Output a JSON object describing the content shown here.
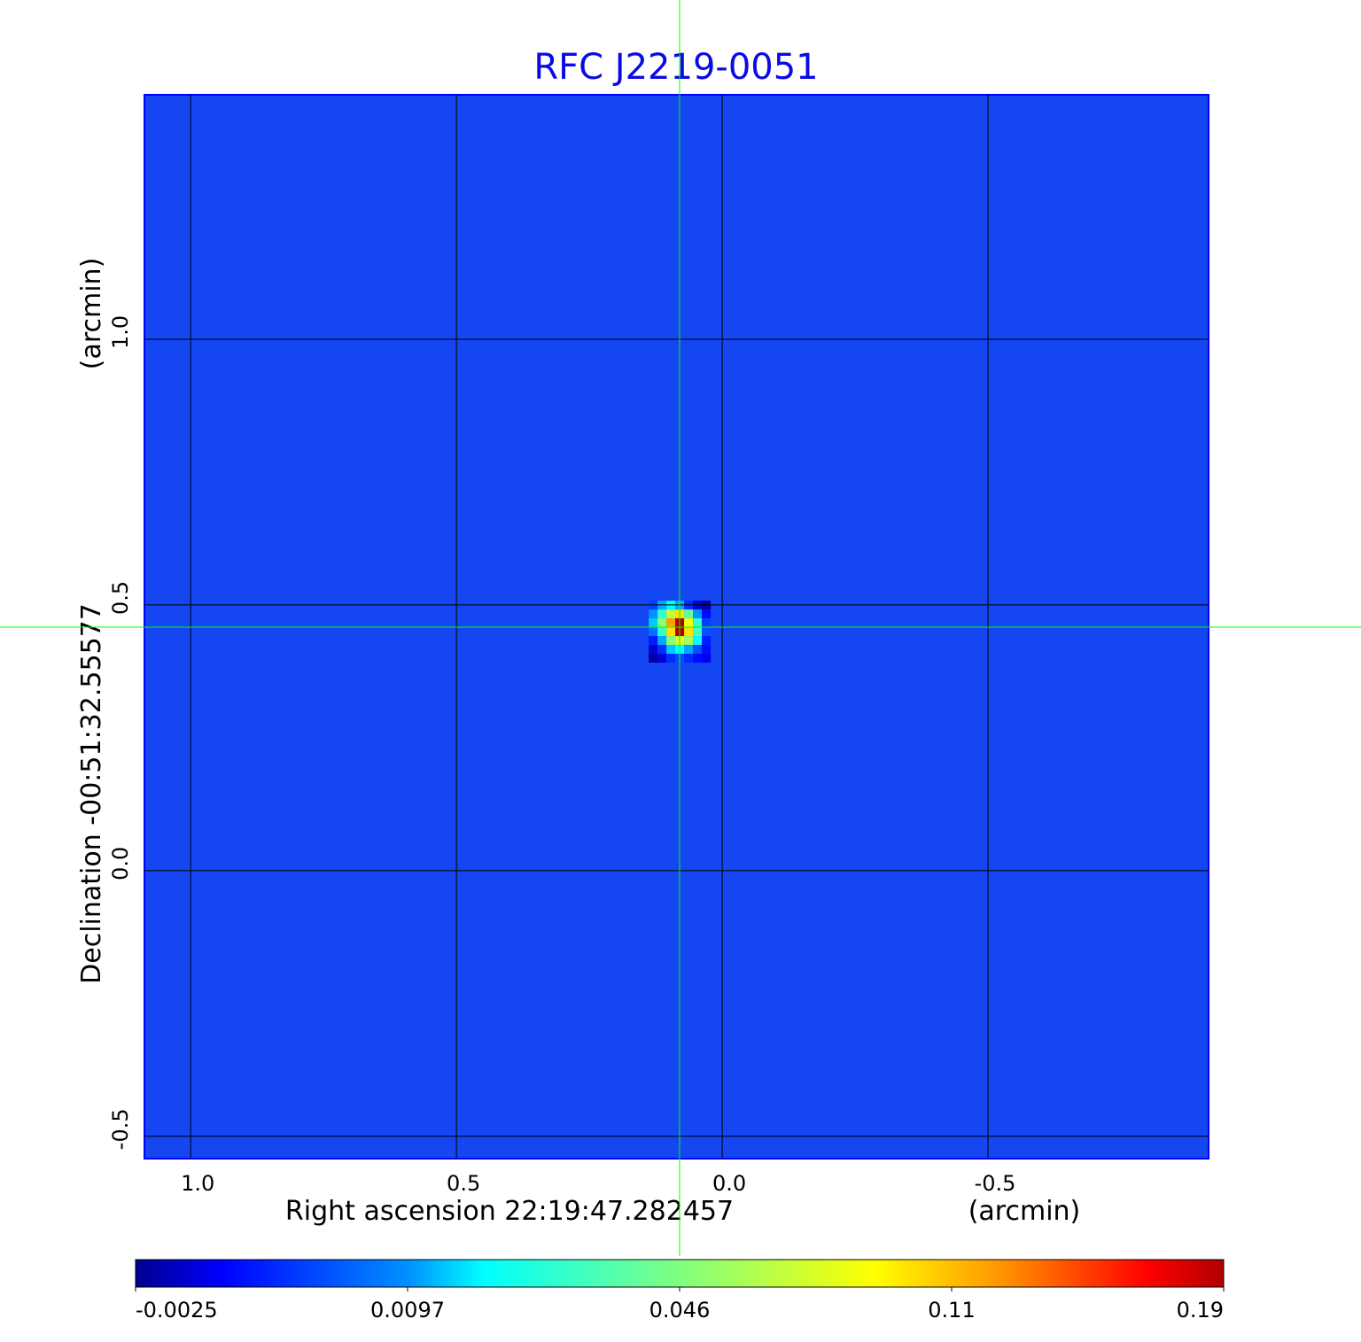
{
  "chart_data": {
    "type": "heatmap",
    "title": "RFC J2219-0051",
    "xlabel": "Right ascension  22:19:47.282457",
    "xunit": "(arcmin)",
    "ylabel": "Declination  -00:51:32.55577",
    "yunit": "(arcmin)",
    "xlim": [
      1.087,
      -0.915
    ],
    "ylim": [
      -0.542,
      1.46
    ],
    "xticks": [
      1.0,
      0.5,
      0.0,
      -0.5
    ],
    "xtick_labels": [
      "1.0",
      "0.5",
      "0.0",
      "-0.5"
    ],
    "yticks": [
      1.0,
      0.5,
      0.0,
      -0.5
    ],
    "ytick_labels": [
      "1.0",
      "0.5",
      "0.0",
      "-0.5"
    ],
    "grid": true,
    "crosshair": {
      "x": 0.08,
      "y": 0.458,
      "color": "#00ff00"
    },
    "colormap": "jet",
    "background_value": 0.003,
    "colorbar": {
      "ticks": [
        -0.0025,
        0.0097,
        0.046,
        0.11,
        0.19
      ],
      "tick_labels": [
        "-0.0025",
        "0.0097",
        "0.046",
        "0.11",
        "0.19"
      ],
      "placement": "bottom"
    },
    "source_peak": {
      "x": 0.08,
      "y": 0.458,
      "value": 0.19
    },
    "source_cells": [
      [
        0.005,
        0.012,
        0.02,
        0.012,
        0.004,
        0.0,
        -0.002
      ],
      [
        0.01,
        0.03,
        0.07,
        0.1,
        0.04,
        0.01,
        0.002
      ],
      [
        0.015,
        0.05,
        0.12,
        0.19,
        0.09,
        0.03,
        0.005
      ],
      [
        0.008,
        0.03,
        0.1,
        0.19,
        0.1,
        0.035,
        0.006
      ],
      [
        0.003,
        0.012,
        0.05,
        0.08,
        0.06,
        0.02,
        0.003
      ],
      [
        0.0,
        0.004,
        0.015,
        0.02,
        0.012,
        0.006,
        0.002
      ],
      [
        -0.002,
        0.0,
        0.004,
        0.006,
        0.004,
        0.002,
        0.001
      ]
    ],
    "colors": {
      "title": "#0a0ae6",
      "grid": "#000000"
    }
  }
}
